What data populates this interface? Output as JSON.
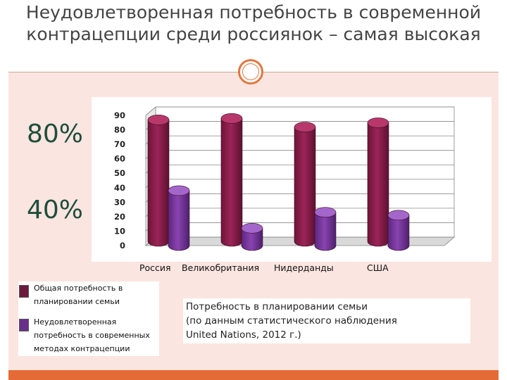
{
  "title": "Неудовлетворенная потребность в современной контрацепции среди россиянок – самая высокая",
  "big_labels": [
    "80%",
    "40%"
  ],
  "stray_mark": ")",
  "colors": {
    "series1": "#9b2458",
    "series2": "#8a44b0",
    "panel": "#fae5e0",
    "bar": "#e46b36",
    "percent_text": "#1e4d3b"
  },
  "note": {
    "line1": "Потребность в планировании семьи",
    "line2": "(по данным статистического наблюдения",
    "line3": "United Nations, 2012 г.)"
  },
  "chart_data": {
    "type": "bar",
    "categories": [
      "Россия",
      "Великобритания",
      "Нидерданды",
      "США"
    ],
    "series": [
      {
        "name": "Общая потребность в планировании семьи",
        "values": [
          84,
          85,
          79,
          82
        ]
      },
      {
        "name": "Неудовлетворенная потребность в современных методах контрацепции",
        "values": [
          38,
          12,
          23,
          21
        ]
      }
    ],
    "ylim": [
      0,
      90
    ],
    "yticks": [
      0,
      10,
      20,
      30,
      40,
      50,
      60,
      70,
      80,
      90
    ],
    "legend_position": "bottom-left"
  }
}
